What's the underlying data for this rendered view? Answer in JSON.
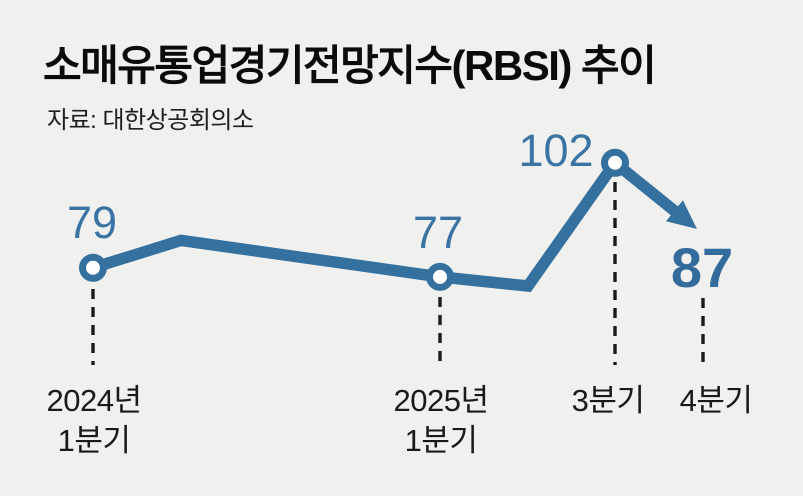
{
  "chart_data": {
    "type": "line",
    "title": "소매유통업경기전망지수(RBSI) 추이",
    "source": "자료: 대한상공회의소",
    "legend": "none",
    "y_axis_visible": false,
    "ylim": [
      70,
      108
    ],
    "points": [
      {
        "label": [
          "2024년",
          "1분기"
        ],
        "value": 79,
        "value_shown": true,
        "marker": "circle"
      },
      {
        "label": null,
        "value": 85,
        "value_shown": false,
        "marker": "none"
      },
      {
        "label": [
          "2025년",
          "1분기"
        ],
        "value": 77,
        "value_shown": true,
        "marker": "circle"
      },
      {
        "label": null,
        "value": 75,
        "value_shown": false,
        "marker": "none"
      },
      {
        "label": [
          "3분기"
        ],
        "value": 102,
        "value_shown": true,
        "marker": "circle"
      },
      {
        "label": [
          "4분기"
        ],
        "value": 87,
        "value_shown": true,
        "marker": "arrow-end"
      }
    ],
    "colors": {
      "line": "#35719f",
      "value_labels": "#3a74a5",
      "value_emphasis": "#336b9d",
      "marker_fill": "#ffffff",
      "axis_text": "#1a1a1a",
      "title_text": "#0b0b0b",
      "dash": "#1a1a1a",
      "background": "#f0f0ef"
    }
  }
}
